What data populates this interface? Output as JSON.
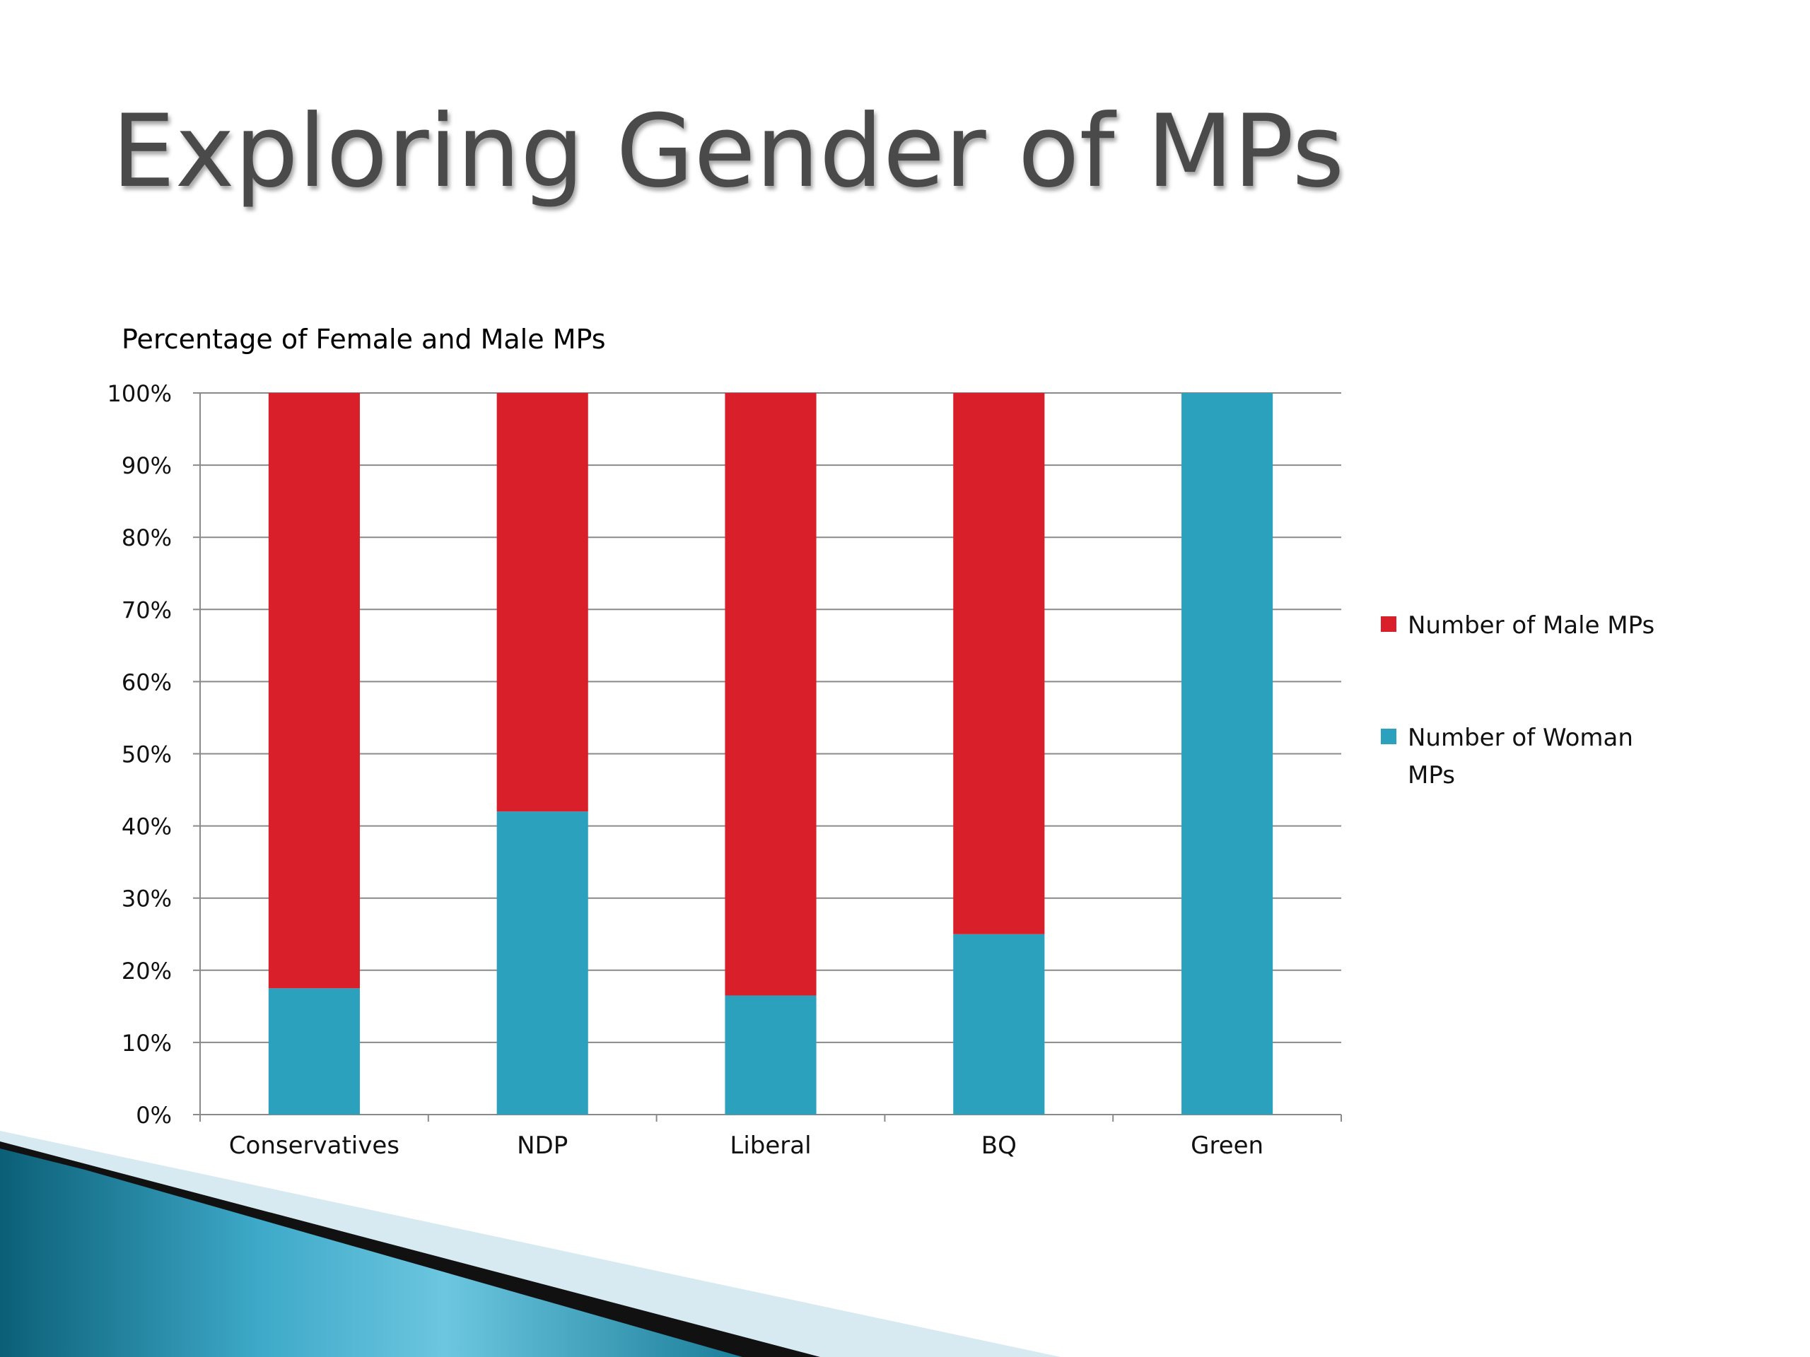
{
  "slide": {
    "title": "Exploring Gender of MPs"
  },
  "chart_data": {
    "type": "bar",
    "stacked": true,
    "normalized_percent": true,
    "title": "Percentage of Female and Male MPs",
    "xlabel": "",
    "ylabel": "",
    "ylim": [
      0,
      100
    ],
    "yticks": [
      "0%",
      "10%",
      "20%",
      "30%",
      "40%",
      "50%",
      "60%",
      "70%",
      "80%",
      "90%",
      "100%"
    ],
    "categories": [
      "Conservatives",
      "NDP",
      "Liberal",
      "BQ",
      "Green"
    ],
    "series": [
      {
        "name": "Number of Woman MPs",
        "color": "#2ca1bd",
        "values": [
          17.5,
          42,
          16.5,
          25,
          100
        ]
      },
      {
        "name": "Number of Male MPs",
        "color": "#d91f2a",
        "values": [
          82.5,
          58,
          83.5,
          75,
          0
        ]
      }
    ],
    "legend_order": [
      "Number of Male MPs",
      "Number of Woman MPs"
    ],
    "legend_position": "right",
    "grid": true
  }
}
